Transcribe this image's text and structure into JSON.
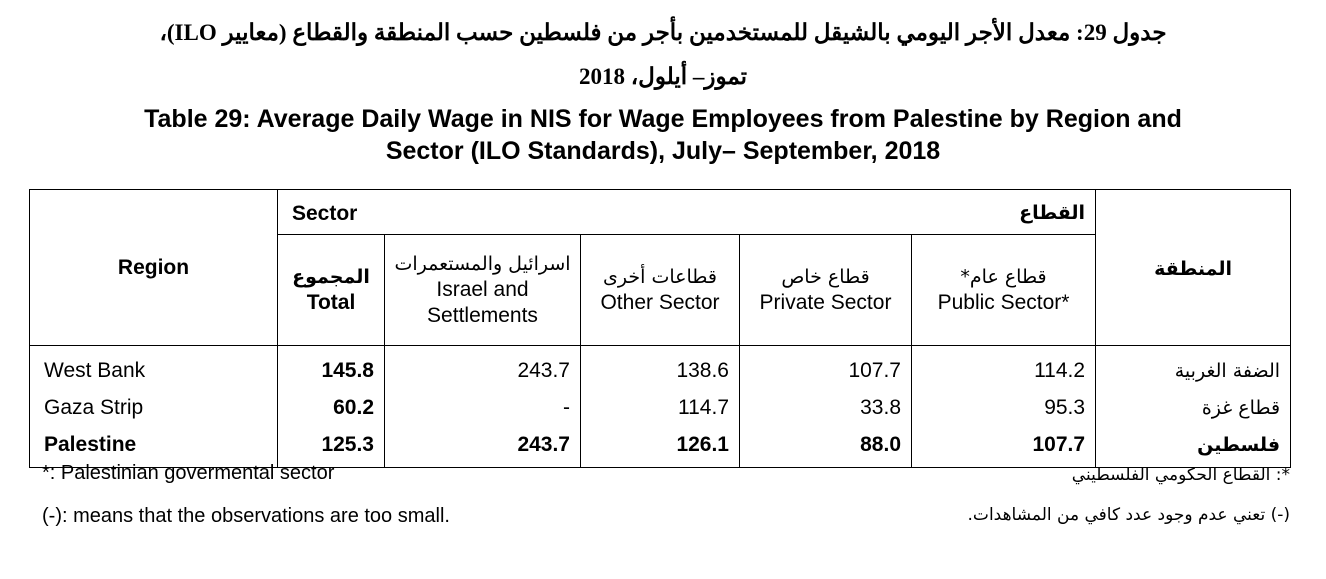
{
  "title_ar_line1": "جدول 29: معدل الأجر اليومي بالشيقل للمستخدمين بأجر من فلسطين حسب المنطقة والقطاع (معايير ILO)،",
  "title_ar_line2": "تموز– أيلول، 2018",
  "title_en_line1": "Table 29: Average Daily Wage in NIS for Wage Employees from Palestine by Region and",
  "title_en_line2": "Sector (ILO Standards), July– September, 2018",
  "header": {
    "region_en": "Region",
    "region_ar": "المنطقة",
    "sector_en": "Sector",
    "sector_ar": "القطاع",
    "columns": [
      {
        "ar": "المجموع",
        "en": "Total"
      },
      {
        "ar": "اسرائيل والمستعمرات",
        "en_line1": "Israel and",
        "en_line2": "Settlements"
      },
      {
        "ar": "قطاعات أخرى",
        "en": "Other Sector"
      },
      {
        "ar": "قطاع خاص",
        "en": "Private Sector"
      },
      {
        "ar": "قطاع عام*",
        "en": "Public Sector*"
      }
    ]
  },
  "rows": [
    {
      "region_en": "West Bank",
      "region_ar": "الضفة الغربية",
      "total": "145.8",
      "israel": "243.7",
      "other": "138.6",
      "private": "107.7",
      "public": "114.2"
    },
    {
      "region_en": "Gaza Strip",
      "region_ar": "قطاع غزة",
      "total": "60.2",
      "israel": "-",
      "other": "114.7",
      "private": "33.8",
      "public": "95.3"
    },
    {
      "region_en": "Palestine",
      "region_ar": "فلسطين",
      "total": "125.3",
      "israel": "243.7",
      "other": "126.1",
      "private": "88.0",
      "public": "107.7"
    }
  ],
  "notes": {
    "note1_en": "*: Palestinian govermental sector",
    "note2_en": "(-): means that the observations are too small.",
    "note1_ar": "*: القطاع الحكومي الفلسطيني",
    "note2_ar": "(-)  تعني عدم وجود عدد كافي من المشاهدات."
  }
}
